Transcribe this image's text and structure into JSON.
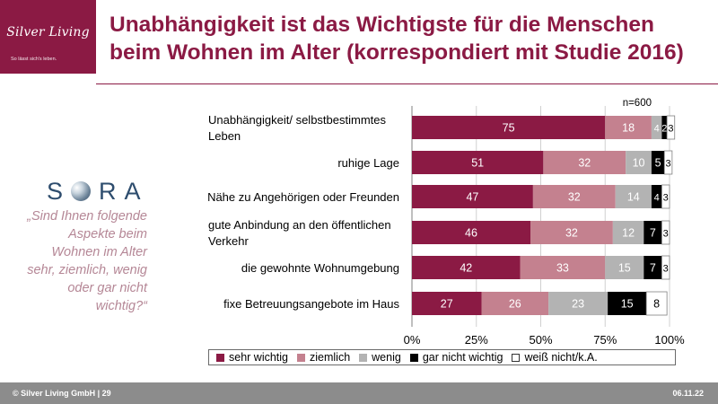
{
  "header": {
    "logo_name": "Silver Living",
    "logo_tagline": "So lässt sich's leben.",
    "title": "Unabhängigkeit ist das Wichtigste für die Menschen beim Wohnen im Alter (korrespondiert mit Studie 2016)"
  },
  "sidebar": {
    "sora_letters": [
      "S",
      "R",
      "A"
    ],
    "question": "„Sind Ihnen folgende Aspekte beim Wohnen im Alter sehr, ziemlich, wenig oder gar nicht wichtig?“"
  },
  "colors": {
    "brand": "#8b1a44",
    "sehr_wichtig": "#8b1a44",
    "ziemlich": "#c4818f",
    "wenig": "#b3b3b3",
    "gar_nicht_wichtig": "#000000",
    "weiss_nicht": "#ffffff"
  },
  "chart_data": {
    "type": "bar",
    "orientation": "horizontal",
    "stacked": true,
    "note": "n=600",
    "categories": [
      "Unabhängigkeit/ selbstbestimmtes Leben",
      "ruhige Lage",
      "Nähe zu Angehörigen oder Freunden",
      "gute Anbindung an den öffentlichen Verkehr",
      "die gewohnte Wohnumgebung",
      "fixe Betreuungsangebote im Haus"
    ],
    "category_lines": [
      [
        "Unabhängigkeit/ selbstbestimmtes",
        "Leben"
      ],
      [
        "ruhige Lage"
      ],
      [
        "Nähe zu Angehörigen oder Freunden"
      ],
      [
        "gute Anbindung an den öffentlichen",
        "Verkehr"
      ],
      [
        "die gewohnte Wohnumgebung"
      ],
      [
        "fixe Betreuungsangebote im Haus"
      ]
    ],
    "series": [
      {
        "name": "sehr wichtig",
        "color": "#8b1a44",
        "label_color": "#ffffff",
        "values": [
          75,
          51,
          47,
          46,
          42,
          27
        ]
      },
      {
        "name": "ziemlich",
        "color": "#c4818f",
        "label_color": "#ffffff",
        "values": [
          18,
          32,
          32,
          32,
          33,
          26
        ]
      },
      {
        "name": "wenig",
        "color": "#b3b3b3",
        "label_color": "#ffffff",
        "values": [
          4,
          10,
          14,
          12,
          15,
          23
        ]
      },
      {
        "name": "gar nicht wichtig",
        "color": "#000000",
        "label_color": "#ffffff",
        "values": [
          2,
          5,
          4,
          7,
          7,
          15
        ]
      },
      {
        "name": "weiß nicht/k.A.",
        "color": "#ffffff",
        "label_color": "#000000",
        "values": [
          3,
          3,
          3,
          3,
          3,
          8
        ]
      }
    ],
    "x_ticks": [
      "0%",
      "25%",
      "50%",
      "75%",
      "100%"
    ],
    "xlim": [
      0,
      100
    ],
    "grid": true,
    "legend_position": "bottom"
  },
  "footer": {
    "left": "© Silver Living GmbH | 29",
    "right": "06.11.22"
  }
}
